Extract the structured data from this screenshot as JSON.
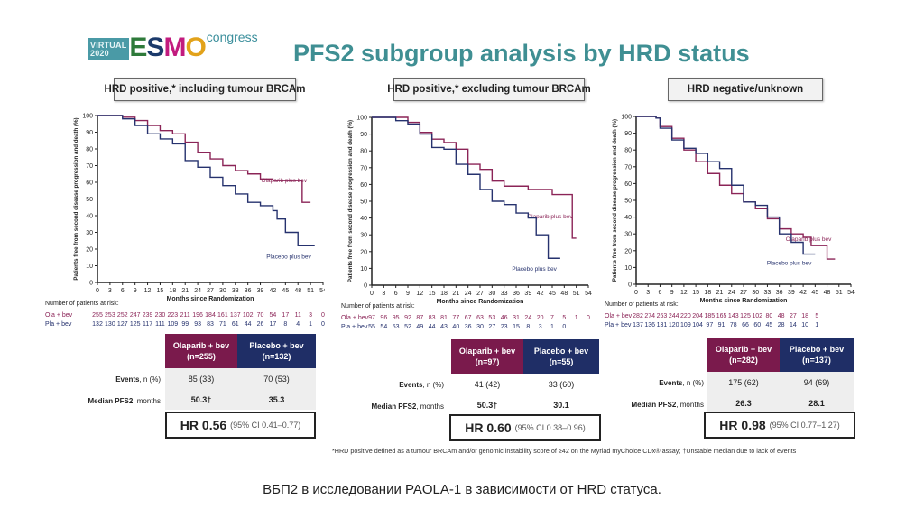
{
  "logo": {
    "virtual": "VIRTUAL",
    "year": "2020",
    "esmo_letters": [
      "E",
      "S",
      "M",
      "O"
    ],
    "congress": "congress"
  },
  "title": "PFS2 subgroup analysis by HRD status",
  "colors": {
    "olaparib": "#8b2457",
    "placebo": "#26326e",
    "title": "#3f8f93"
  },
  "table_row_labels": {
    "events_bold": "Events",
    "events_rest": ", n (%)",
    "median_bold": "Median PFS2",
    "median_rest": ", months"
  },
  "risk_header": "Number of patients at risk:",
  "panels": [
    {
      "subtitle": "HRD positive,* including tumour BRCAm",
      "ola_header": "Olaparib + bev",
      "ola_n": "(n=255)",
      "pla_header": "Placebo + bev",
      "pla_n": "(n=132)",
      "ola_events": "85 (33)",
      "pla_events": "70 (53)",
      "ola_median": "50.3†",
      "pla_median": "35.3",
      "hr": "HR 0.56",
      "ci": "(95% CI 0.41–0.77)",
      "risk_ola_label": "Ola + bev",
      "risk_pla_label": "Pla + bev",
      "risk_ola": [
        "255",
        "253",
        "252",
        "247",
        "239",
        "230",
        "223",
        "211",
        "196",
        "184",
        "161",
        "137",
        "102",
        "70",
        "54",
        "17",
        "11",
        "3",
        "0"
      ],
      "risk_pla": [
        "132",
        "130",
        "127",
        "125",
        "117",
        "111",
        "109",
        "99",
        "93",
        "83",
        "71",
        "61",
        "44",
        "26",
        "17",
        "8",
        "4",
        "1",
        "0"
      ]
    },
    {
      "subtitle": "HRD positive,* excluding tumour BRCAm",
      "ola_header": "Olaparib + bev",
      "ola_n": "(n=97)",
      "pla_header": "Placebo + bev",
      "pla_n": "(n=55)",
      "ola_events": "41 (42)",
      "pla_events": "33 (60)",
      "ola_median": "50.3†",
      "pla_median": "30.1",
      "hr": "HR 0.60",
      "ci": "(95% CI 0.38–0.96)",
      "risk_ola_label": "Ola + bev",
      "risk_pla_label": "Pla + bev",
      "risk_ola": [
        "97",
        "96",
        "95",
        "92",
        "87",
        "83",
        "81",
        "77",
        "67",
        "63",
        "53",
        "46",
        "31",
        "24",
        "20",
        "7",
        "5",
        "1",
        "0"
      ],
      "risk_pla": [
        "55",
        "54",
        "53",
        "52",
        "49",
        "44",
        "43",
        "40",
        "36",
        "30",
        "27",
        "23",
        "15",
        "8",
        "3",
        "1",
        "0"
      ]
    },
    {
      "subtitle": "HRD negative/unknown",
      "ola_header": "Olaparib + bev",
      "ola_n": "(n=282)",
      "pla_header": "Placebo + bev",
      "pla_n": "(n=137)",
      "ola_events": "175 (62)",
      "pla_events": "94 (69)",
      "ola_median": "26.3",
      "pla_median": "28.1",
      "hr": "HR 0.98",
      "ci": "(95% CI 0.77–1.27)",
      "risk_ola_label": "Ola + bev",
      "risk_pla_label": "Pla + bev",
      "risk_ola": [
        "282",
        "274",
        "263",
        "244",
        "220",
        "204",
        "185",
        "165",
        "143",
        "125",
        "102",
        "80",
        "48",
        "27",
        "18",
        "5"
      ],
      "risk_pla": [
        "137",
        "136",
        "131",
        "120",
        "109",
        "104",
        "97",
        "91",
        "78",
        "66",
        "60",
        "45",
        "28",
        "14",
        "10",
        "1"
      ]
    }
  ],
  "footnote": "*HRD positive defined as a tumour BRCAm and/or genomic instability score of ≥42 on the Myriad myChoice CDx® assay; †Unstable median due to lack of events",
  "caption": "ВБП2 в исследовании PAOLA-1 в зависимости от HRD статуса.",
  "chart_data": [
    {
      "type": "line",
      "title": "HRD positive,* including tumour BRCAm",
      "xlabel": "Months since Randomization",
      "ylabel": "Patients free from second disease progression and death (%)",
      "xlim": [
        0,
        54
      ],
      "ylim": [
        0,
        100
      ],
      "xticks": [
        0,
        3,
        6,
        9,
        12,
        15,
        18,
        21,
        24,
        27,
        30,
        33,
        36,
        39,
        42,
        45,
        48,
        51,
        54
      ],
      "yticks": [
        0,
        10,
        20,
        30,
        40,
        50,
        60,
        70,
        80,
        90,
        100
      ],
      "series": [
        {
          "name": "Olaparib plus bev",
          "x": [
            0,
            3,
            6,
            9,
            12,
            15,
            18,
            21,
            24,
            27,
            30,
            33,
            36,
            39,
            42,
            45,
            48,
            49,
            49,
            51
          ],
          "y": [
            100,
            100,
            99,
            97,
            94,
            91,
            89,
            84,
            78,
            74,
            70,
            67,
            65,
            62,
            61,
            61,
            61,
            61,
            48,
            48
          ]
        },
        {
          "name": "Placebo plus bev",
          "x": [
            0,
            3,
            6,
            9,
            12,
            15,
            18,
            21,
            24,
            27,
            30,
            33,
            36,
            39,
            42,
            43,
            45,
            48,
            48,
            52
          ],
          "y": [
            100,
            100,
            98,
            94,
            89,
            86,
            83,
            73,
            69,
            63,
            58,
            53,
            48,
            46,
            43,
            38,
            30,
            30,
            22,
            22
          ]
        }
      ],
      "legend": "inline-right"
    },
    {
      "type": "line",
      "title": "HRD positive,* excluding tumour BRCAm",
      "xlabel": "Months since Randomization",
      "ylabel": "Patients free from second disease progression and death (%)",
      "xlim": [
        0,
        54
      ],
      "ylim": [
        0,
        100
      ],
      "xticks": [
        0,
        3,
        6,
        9,
        12,
        15,
        18,
        21,
        24,
        27,
        30,
        33,
        36,
        39,
        42,
        45,
        48,
        51,
        54
      ],
      "yticks": [
        0,
        10,
        20,
        30,
        40,
        50,
        60,
        70,
        80,
        90,
        100
      ],
      "series": [
        {
          "name": "Olaparib plus bev",
          "x": [
            0,
            6,
            9,
            12,
            15,
            18,
            21,
            24,
            27,
            30,
            33,
            36,
            39,
            42,
            45,
            48,
            50,
            50,
            51
          ],
          "y": [
            100,
            100,
            97,
            91,
            87,
            85,
            81,
            72,
            69,
            62,
            59,
            59,
            57,
            57,
            54,
            54,
            54,
            28,
            28
          ]
        },
        {
          "name": "Placebo plus bev",
          "x": [
            0,
            5,
            6,
            9,
            12,
            15,
            18,
            21,
            24,
            27,
            30,
            33,
            36,
            39,
            41,
            41,
            44,
            44,
            47
          ],
          "y": [
            100,
            100,
            98,
            96,
            90,
            82,
            81,
            72,
            66,
            57,
            50,
            48,
            43,
            40,
            40,
            30,
            30,
            16,
            16
          ]
        }
      ],
      "legend": "inline-right"
    },
    {
      "type": "line",
      "title": "HRD negative/unknown",
      "xlabel": "Months since Randomization",
      "ylabel": "Patients free from second disease progression and death (%)",
      "xlim": [
        0,
        54
      ],
      "ylim": [
        0,
        100
      ],
      "xticks": [
        0,
        3,
        6,
        9,
        12,
        15,
        18,
        21,
        24,
        27,
        30,
        33,
        36,
        39,
        42,
        45,
        48,
        51,
        54
      ],
      "yticks": [
        0,
        10,
        20,
        30,
        40,
        50,
        60,
        70,
        80,
        90,
        100
      ],
      "series": [
        {
          "name": "Olaparib plus bev",
          "x": [
            0,
            5,
            6,
            9,
            12,
            15,
            18,
            21,
            24,
            27,
            30,
            33,
            36,
            39,
            42,
            44,
            44,
            48,
            48,
            50
          ],
          "y": [
            100,
            99,
            94,
            87,
            80,
            73,
            66,
            59,
            54,
            49,
            45,
            39,
            33,
            30,
            28,
            27,
            23,
            23,
            15,
            15
          ]
        },
        {
          "name": "Placebo plus bev",
          "x": [
            0,
            5,
            6,
            9,
            12,
            15,
            18,
            21,
            24,
            27,
            30,
            33,
            36,
            39,
            42,
            45
          ],
          "y": [
            100,
            99,
            93,
            86,
            81,
            78,
            73,
            69,
            59,
            49,
            47,
            40,
            30,
            25,
            18,
            18
          ]
        }
      ],
      "legend": "inline-right"
    }
  ]
}
